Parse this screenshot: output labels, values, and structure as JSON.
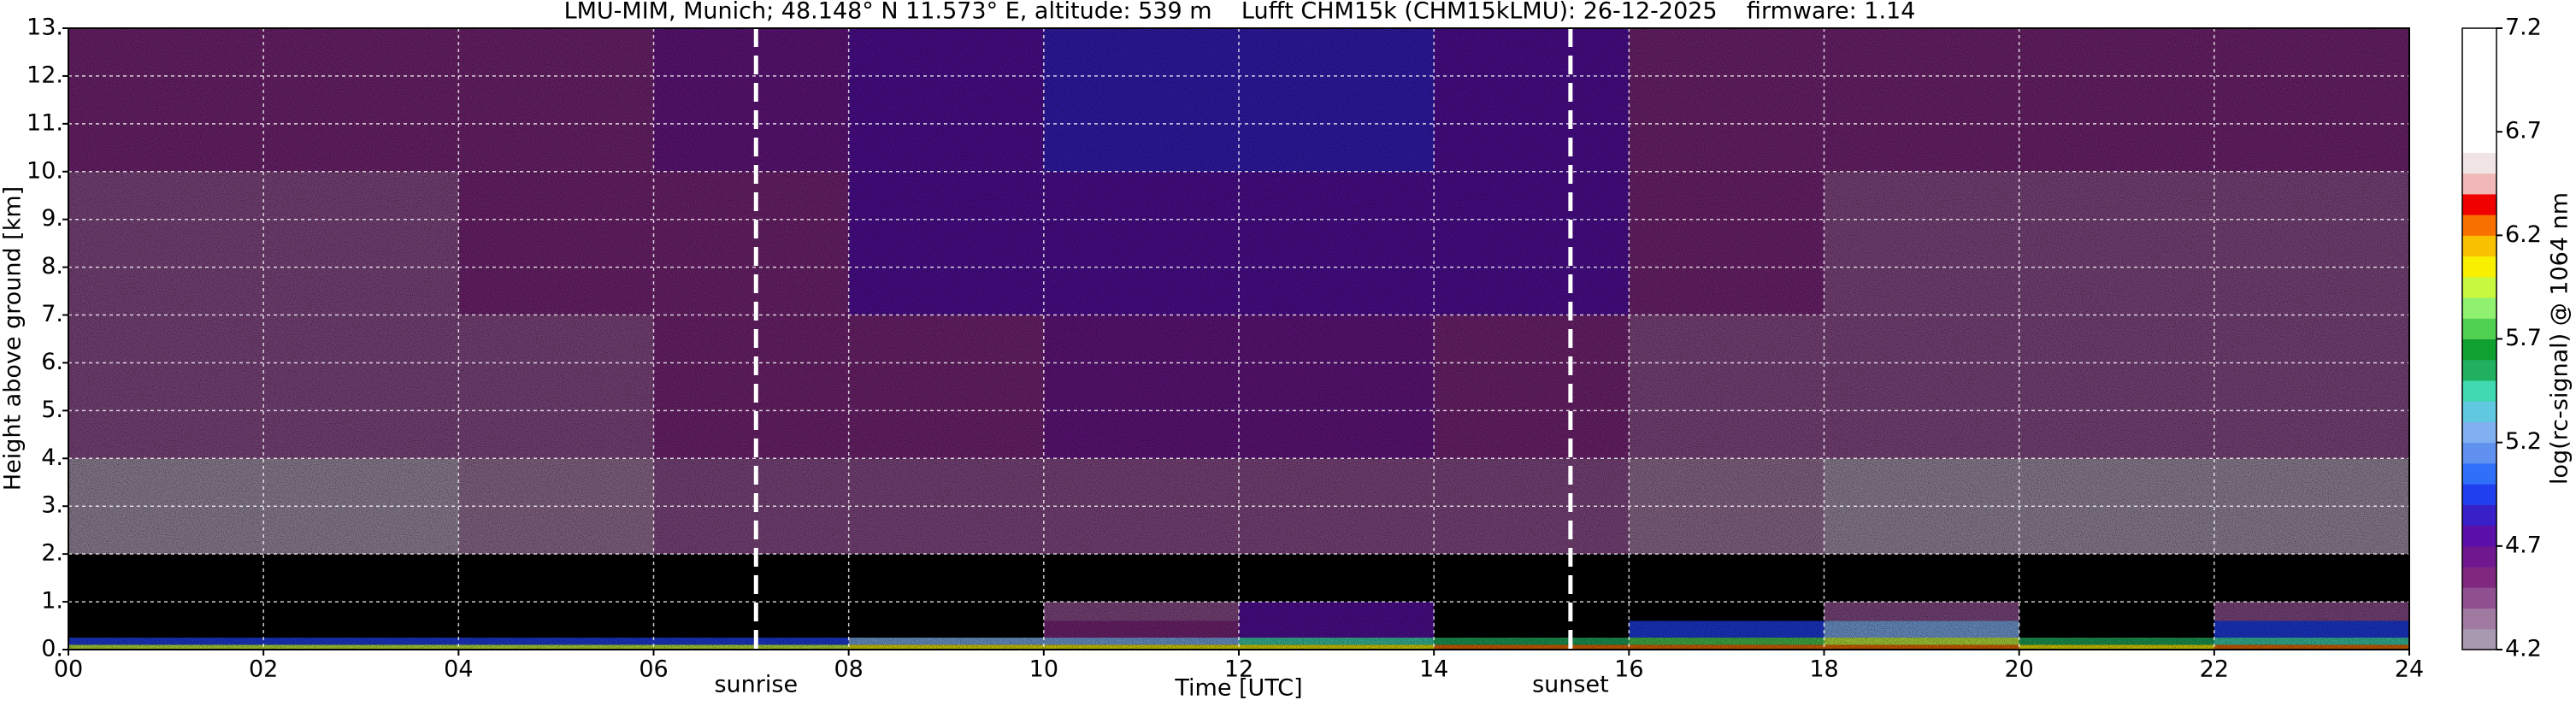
{
  "chart_data": {
    "type": "heatmap",
    "title": "LMU-MIM, Munich; 48.148° N 11.573° E, altitude: 539 m    Lufft CHM15k (CHM15kLMU): 26-12-2025    firmware: 1.14",
    "xlabel": "Time [UTC]",
    "ylabel": "Height above ground [km]",
    "colorbar_label": "log(rc-signal) @ 1064 nm",
    "xlim": [
      0,
      24
    ],
    "ylim": [
      0,
      13
    ],
    "xticks": [
      {
        "value": 0,
        "label": "00"
      },
      {
        "value": 2,
        "label": "02"
      },
      {
        "value": 4,
        "label": "04"
      },
      {
        "value": 6,
        "label": "06"
      },
      {
        "value": 8,
        "label": "08"
      },
      {
        "value": 10,
        "label": "10"
      },
      {
        "value": 12,
        "label": "12"
      },
      {
        "value": 14,
        "label": "14"
      },
      {
        "value": 16,
        "label": "16"
      },
      {
        "value": 18,
        "label": "18"
      },
      {
        "value": 20,
        "label": "20"
      },
      {
        "value": 22,
        "label": "22"
      },
      {
        "value": 24,
        "label": "24"
      }
    ],
    "yticks": [
      {
        "value": 0,
        "label": "0."
      },
      {
        "value": 1,
        "label": "1."
      },
      {
        "value": 2,
        "label": "2."
      },
      {
        "value": 3,
        "label": "3."
      },
      {
        "value": 4,
        "label": "4."
      },
      {
        "value": 5,
        "label": "5."
      },
      {
        "value": 6,
        "label": "6."
      },
      {
        "value": 7,
        "label": "7."
      },
      {
        "value": 8,
        "label": "8."
      },
      {
        "value": 9,
        "label": "9."
      },
      {
        "value": 10,
        "label": "10."
      },
      {
        "value": 11,
        "label": "11."
      },
      {
        "value": 12,
        "label": "12."
      },
      {
        "value": 13,
        "label": "13."
      }
    ],
    "grid": true,
    "clim": [
      4.2,
      7.2
    ],
    "cticks": [
      4.2,
      4.7,
      5.2,
      5.7,
      6.2,
      6.7,
      7.2
    ],
    "colormap": [
      "#a898b0",
      "#a07aa0",
      "#905090",
      "#802880",
      "#701890",
      "#5a10a8",
      "#3820c8",
      "#2040f0",
      "#3070f8",
      "#6090f0",
      "#80b0f0",
      "#60c8e0",
      "#40d8b0",
      "#20b060",
      "#10a030",
      "#50d050",
      "#90f070",
      "#c8f840",
      "#f8f000",
      "#f8c000",
      "#f87000",
      "#f00000",
      "#f0b8b8",
      "#f0e4e4",
      "#ffffff",
      "#ffffff",
      "#ffffff",
      "#ffffff",
      "#ffffff",
      "#ffffff"
    ],
    "x_bins": [
      0,
      2,
      4,
      6,
      8,
      10,
      12,
      14,
      16,
      18,
      20,
      22,
      24
    ],
    "y_bins": [
      0,
      0.1,
      0.25,
      0.6,
      1,
      2,
      4,
      7,
      10,
      13
    ],
    "z": [
      [
        5.9,
        5.9,
        5.9,
        5.9,
        6.0,
        6.1,
        6.1,
        6.2,
        6.3,
        6.2,
        6.1,
        6.3
      ],
      [
        5.0,
        5.0,
        5.0,
        5.0,
        5.2,
        5.3,
        5.4,
        5.6,
        5.8,
        5.9,
        5.6,
        5.5
      ],
      [
        null,
        null,
        null,
        null,
        null,
        4.6,
        4.7,
        null,
        5.0,
        5.3,
        null,
        4.9
      ],
      [
        null,
        null,
        null,
        null,
        null,
        4.5,
        4.7,
        null,
        null,
        4.4,
        null,
        4.4
      ],
      [
        null,
        null,
        null,
        null,
        null,
        null,
        null,
        null,
        null,
        null,
        null,
        null
      ],
      [
        4.3,
        4.3,
        4.35,
        4.4,
        4.45,
        4.5,
        4.5,
        4.45,
        4.35,
        4.3,
        4.3,
        4.3
      ],
      [
        4.45,
        4.45,
        4.5,
        4.55,
        4.6,
        4.65,
        4.65,
        4.6,
        4.5,
        4.45,
        4.45,
        4.45
      ],
      [
        4.5,
        4.5,
        4.55,
        4.6,
        4.7,
        4.75,
        4.75,
        4.7,
        4.55,
        4.5,
        4.5,
        4.5
      ],
      [
        4.55,
        4.55,
        4.6,
        4.65,
        4.8,
        4.85,
        4.85,
        4.8,
        4.6,
        4.55,
        4.55,
        4.55
      ]
    ],
    "annotations": [
      {
        "text": "sunrise",
        "x": 7.05
      },
      {
        "text": "sunset",
        "x": 15.4
      }
    ]
  }
}
